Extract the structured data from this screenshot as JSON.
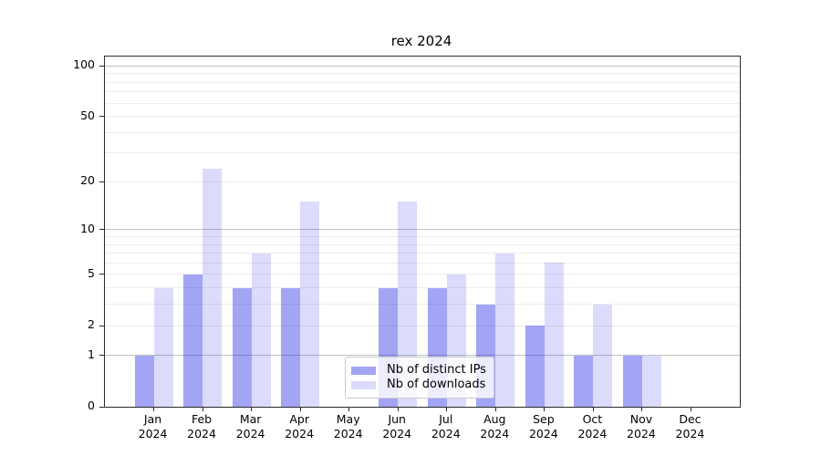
{
  "title": "rex 2024",
  "colors": {
    "bar_distinct_ips": "rgba(15,15,230,0.38)",
    "bar_downloads": "rgba(15,15,230,0.15)",
    "grid_major": "#c2c2c2",
    "grid_minor": "#ececec",
    "axis": "#2b2b2b"
  },
  "legend": {
    "items": [
      {
        "label": "Nb of distinct IPs"
      },
      {
        "label": "Nb of downloads"
      }
    ]
  },
  "chart_data": {
    "type": "bar",
    "title": "rex 2024",
    "categories": [
      "Jan 2024",
      "Feb 2024",
      "Mar 2024",
      "Apr 2024",
      "May 2024",
      "Jun 2024",
      "Jul 2024",
      "Aug 2024",
      "Sep 2024",
      "Oct 2024",
      "Nov 2024",
      "Dec 2024"
    ],
    "series": [
      {
        "name": "Nb of distinct IPs",
        "color": "rgba(15,15,230,0.38)",
        "values": [
          1,
          5,
          4,
          4,
          0,
          4,
          4,
          3,
          2,
          1,
          1,
          0
        ]
      },
      {
        "name": "Nb of downloads",
        "color": "rgba(15,15,230,0.15)",
        "values": [
          4,
          24,
          7,
          15,
          0,
          15,
          5,
          7,
          6,
          3,
          1,
          0
        ]
      }
    ],
    "xlabel": "",
    "ylabel": "",
    "scale": "log10(1+x)",
    "ylim": [
      0,
      113.5
    ],
    "y_ticks": [
      0,
      1,
      2,
      5,
      10,
      20,
      50,
      100
    ],
    "grid": {
      "major": [
        1,
        10,
        100
      ],
      "minor": [
        2,
        3,
        4,
        5,
        6,
        7,
        8,
        9,
        20,
        30,
        40,
        50,
        60,
        70,
        80,
        90
      ]
    },
    "legend_position": "lower-center-inside",
    "grid_on": true
  }
}
